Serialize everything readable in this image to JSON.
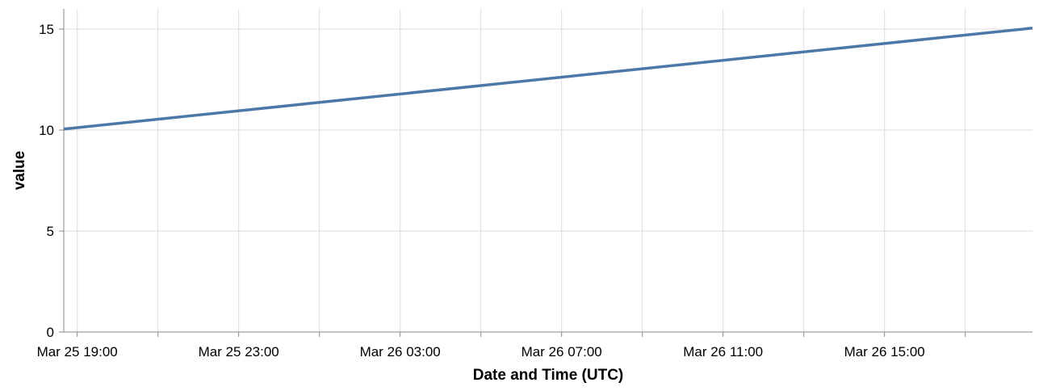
{
  "chart_data": {
    "type": "line",
    "xlabel": "Date and Time (UTC)",
    "ylabel": "value",
    "xlim": [
      "2024-03-25T18:40",
      "2024-03-26T18:40"
    ],
    "ylim": [
      0,
      16
    ],
    "yticks": [
      0,
      5,
      10,
      15
    ],
    "xtick_step_hours": 2,
    "xtick_labels": [
      {
        "t": "2024-03-25T19:00",
        "label": "Mar 25 19:00"
      },
      {
        "t": "2024-03-25T23:00",
        "label": "Mar 25 23:00"
      },
      {
        "t": "2024-03-26T03:00",
        "label": "Mar 26 03:00"
      },
      {
        "t": "2024-03-26T07:00",
        "label": "Mar 26 07:00"
      },
      {
        "t": "2024-03-26T11:00",
        "label": "Mar 26 11:00"
      },
      {
        "t": "2024-03-26T15:00",
        "label": "Mar 26 15:00"
      }
    ],
    "grid": true,
    "series": [
      {
        "color": "#4c78a8",
        "points": [
          {
            "x": "2024-03-25T18:40",
            "y": 10.05
          },
          {
            "x": "2024-03-26T18:40",
            "y": 15.05
          }
        ]
      }
    ]
  }
}
